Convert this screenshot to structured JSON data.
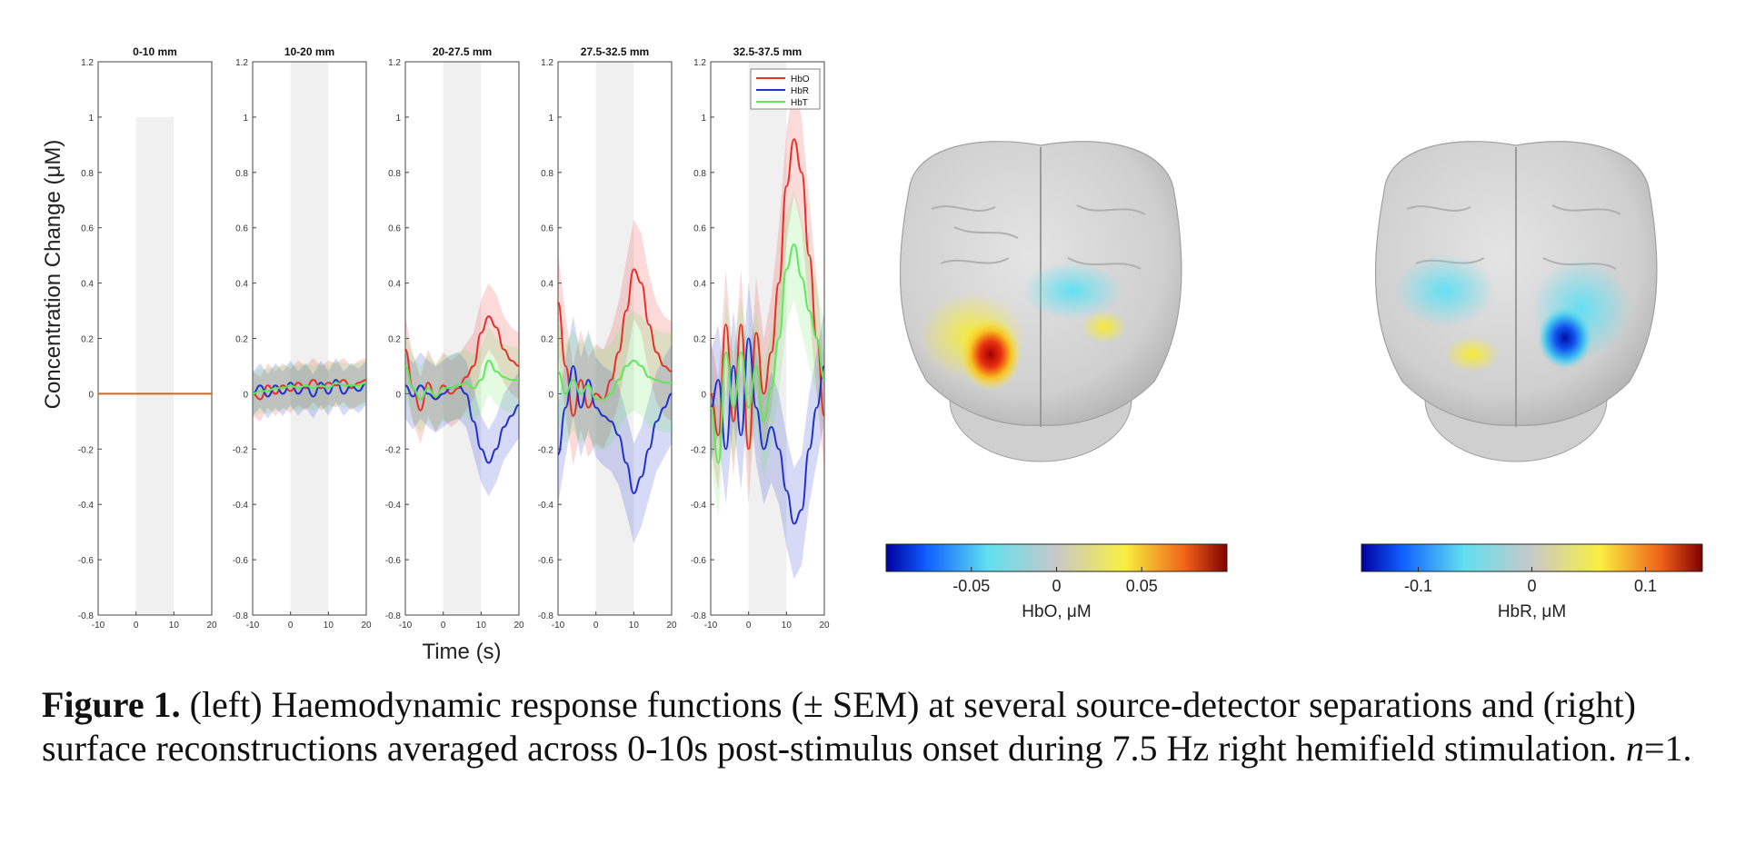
{
  "figure": {
    "caption_label": "Figure 1.",
    "caption_part1": " (left) Haemodynamic response functions (± SEM) at several source-detector separations and (right) surface reconstructions averaged across 0-10s post-stimulus onset during 7.5 Hz right hemifield stimulation. ",
    "caption_n": "n",
    "caption_end": "=1."
  },
  "chart_data": {
    "type": "line",
    "ylabel": "Concentration Change (μM)",
    "xlabel": "Time (s)",
    "xlim": [
      -10,
      20
    ],
    "ylim": [
      -0.8,
      1.2
    ],
    "x_ticks": [
      "-10",
      "0",
      "10",
      "20"
    ],
    "y_ticks": [
      "1.2",
      "1",
      "0.8",
      "0.6",
      "0.4",
      "0.2",
      "0",
      "-0.2",
      "-0.4",
      "-0.6",
      "-0.8"
    ],
    "stimulus_window": [
      0,
      10
    ],
    "legend": {
      "placement": "top-right",
      "entries": [
        "HbO",
        "HbR",
        "HbT"
      ]
    },
    "colors": {
      "HbO": "#e8302a",
      "HbR": "#2233cc",
      "HbT": "#5ee85a",
      "stim": "#f0f0f0",
      "flat": "#c86a1e"
    },
    "panels": [
      {
        "title": "0-10 mm",
        "x": [
          -10,
          0,
          10,
          20
        ],
        "series": []
      },
      {
        "title": "10-20 mm",
        "x": [
          -10,
          -8,
          -6,
          -4,
          -2,
          0,
          2,
          4,
          6,
          8,
          10,
          12,
          14,
          16,
          18,
          20
        ],
        "series": [
          {
            "name": "HbO",
            "values": [
              0.0,
              -0.02,
              0.03,
              0.0,
              0.03,
              0.01,
              0.04,
              0.02,
              0.05,
              0.02,
              0.04,
              0.03,
              0.05,
              0.02,
              0.04,
              0.05
            ]
          },
          {
            "name": "HbR",
            "values": [
              0.0,
              0.03,
              -0.01,
              0.03,
              0.0,
              0.04,
              0.0,
              0.03,
              -0.01,
              0.04,
              0.0,
              0.05,
              0.0,
              0.03,
              0.01,
              0.04
            ]
          },
          {
            "name": "HbT",
            "values": [
              0.0,
              0.01,
              0.01,
              0.02,
              0.02,
              0.03,
              0.02,
              0.03,
              0.02,
              0.03,
              0.02,
              0.04,
              0.03,
              0.03,
              0.03,
              0.04
            ]
          }
        ]
      },
      {
        "title": "20-27.5 mm",
        "x": [
          -10,
          -8,
          -6,
          -4,
          -2,
          0,
          2,
          4,
          6,
          8,
          10,
          12,
          14,
          16,
          18,
          20
        ],
        "series": [
          {
            "name": "HbO",
            "values": [
              0.16,
              0.02,
              -0.06,
              0.04,
              -0.02,
              0.03,
              0.0,
              0.02,
              0.06,
              0.1,
              0.22,
              0.28,
              0.24,
              0.16,
              0.12,
              0.1
            ]
          },
          {
            "name": "HbR",
            "values": [
              0.03,
              -0.01,
              0.03,
              0.0,
              -0.02,
              0.0,
              0.02,
              0.03,
              0.0,
              -0.1,
              -0.2,
              -0.25,
              -0.2,
              -0.12,
              -0.08,
              -0.04
            ]
          },
          {
            "name": "HbT",
            "values": [
              0.1,
              0.02,
              -0.02,
              0.02,
              -0.01,
              0.02,
              0.02,
              0.03,
              0.04,
              0.02,
              0.05,
              0.12,
              0.08,
              0.06,
              0.05,
              0.05
            ]
          }
        ]
      },
      {
        "title": "27.5-32.5 mm",
        "x": [
          -10,
          -8,
          -6,
          -4,
          -2,
          0,
          2,
          4,
          6,
          8,
          10,
          12,
          14,
          16,
          18,
          20
        ],
        "series": [
          {
            "name": "HbO",
            "values": [
              0.33,
              0.1,
              -0.08,
              0.05,
              -0.05,
              0.0,
              -0.02,
              0.05,
              0.15,
              0.3,
              0.45,
              0.4,
              0.25,
              0.15,
              0.1,
              0.08
            ]
          },
          {
            "name": "HbR",
            "values": [
              -0.22,
              -0.05,
              0.1,
              -0.05,
              0.05,
              -0.05,
              -0.08,
              -0.1,
              -0.15,
              -0.25,
              -0.36,
              -0.3,
              -0.2,
              -0.1,
              -0.05,
              0.0
            ]
          },
          {
            "name": "HbT",
            "values": [
              0.08,
              0.0,
              0.05,
              0.0,
              0.03,
              -0.02,
              -0.02,
              0.0,
              0.05,
              0.1,
              0.12,
              0.1,
              0.06,
              0.05,
              0.04,
              0.04
            ]
          }
        ]
      },
      {
        "title": "32.5-37.5 mm",
        "x": [
          -10,
          -8,
          -6,
          -4,
          -2,
          0,
          2,
          4,
          6,
          8,
          10,
          12,
          14,
          16,
          18,
          20
        ],
        "series": [
          {
            "name": "HbO",
            "values": [
              0.0,
              -0.15,
              0.25,
              -0.1,
              0.25,
              -0.2,
              0.22,
              0.0,
              0.15,
              0.4,
              0.75,
              0.92,
              0.8,
              0.5,
              0.2,
              -0.08
            ]
          },
          {
            "name": "HbR",
            "values": [
              -0.05,
              0.05,
              -0.2,
              0.1,
              -0.15,
              0.2,
              -0.05,
              -0.2,
              -0.12,
              -0.2,
              -0.35,
              -0.47,
              -0.42,
              -0.2,
              -0.05,
              0.1
            ]
          },
          {
            "name": "HbT",
            "values": [
              -0.05,
              -0.25,
              0.15,
              -0.05,
              0.15,
              -0.05,
              0.1,
              -0.1,
              0.02,
              0.2,
              0.45,
              0.54,
              0.42,
              0.3,
              0.2,
              0.05
            ]
          }
        ]
      }
    ]
  },
  "colorbars": [
    {
      "label": "HbO, μM",
      "ticks": [
        {
          "value": -0.05,
          "text": "-0.05"
        },
        {
          "value": 0,
          "text": "0"
        },
        {
          "value": 0.05,
          "text": "0.05"
        }
      ],
      "range": [
        -0.1,
        0.1
      ]
    },
    {
      "label": "HbR, μM",
      "ticks": [
        {
          "value": -0.1,
          "text": "-0.1"
        },
        {
          "value": 0,
          "text": "0"
        },
        {
          "value": 0.1,
          "text": "0.1"
        }
      ],
      "range": [
        -0.15,
        0.15
      ]
    }
  ]
}
